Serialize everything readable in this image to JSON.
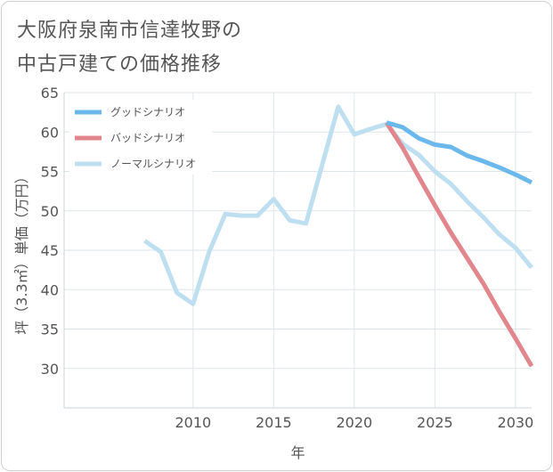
{
  "title": {
    "line1": "大阪府泉南市信達牧野の",
    "line2": "中古戸建ての価格推移"
  },
  "chart_data": {
    "type": "line",
    "xlabel": "年",
    "ylabel": "坪（3.3㎡）単価（万円）",
    "xlim": [
      2002,
      2031
    ],
    "ylim": [
      25,
      65
    ],
    "x_ticks": [
      2010,
      2015,
      2020,
      2025,
      2030
    ],
    "y_ticks": [
      30,
      35,
      40,
      45,
      50,
      55,
      60,
      65
    ],
    "grid": true,
    "legend_position": "top-left",
    "series": [
      {
        "name": "グッドシナリオ",
        "color": "#6bb8ec",
        "x": [
          2022,
          2023,
          2024,
          2025,
          2026,
          2027,
          2028,
          2029,
          2030,
          2031
        ],
        "y": [
          61.2,
          60.6,
          59.2,
          58.4,
          58.1,
          57.0,
          56.3,
          55.5,
          54.6,
          53.6
        ]
      },
      {
        "name": "バッドシナリオ",
        "color": "#e0868c",
        "x": [
          2022,
          2023,
          2024,
          2025,
          2026,
          2027,
          2028,
          2029,
          2030,
          2031
        ],
        "y": [
          61.2,
          58.0,
          54.3,
          50.7,
          47.2,
          44.0,
          40.8,
          37.2,
          33.8,
          30.3
        ]
      },
      {
        "name": "ノーマルシナリオ",
        "color": "#bedff0",
        "x": [
          2007,
          2008,
          2009,
          2010,
          2011,
          2012,
          2013,
          2014,
          2015,
          2016,
          2017,
          2018,
          2019,
          2020,
          2021,
          2022,
          2023,
          2024,
          2025,
          2026,
          2027,
          2028,
          2029,
          2030,
          2031
        ],
        "y": [
          46.2,
          44.8,
          39.6,
          38.2,
          44.8,
          49.6,
          49.4,
          49.4,
          51.5,
          48.8,
          48.4,
          55.8,
          63.2,
          59.7,
          60.4,
          61.0,
          58.5,
          57.1,
          55.0,
          53.4,
          51.2,
          49.2,
          47.0,
          45.3,
          42.8
        ]
      }
    ]
  }
}
